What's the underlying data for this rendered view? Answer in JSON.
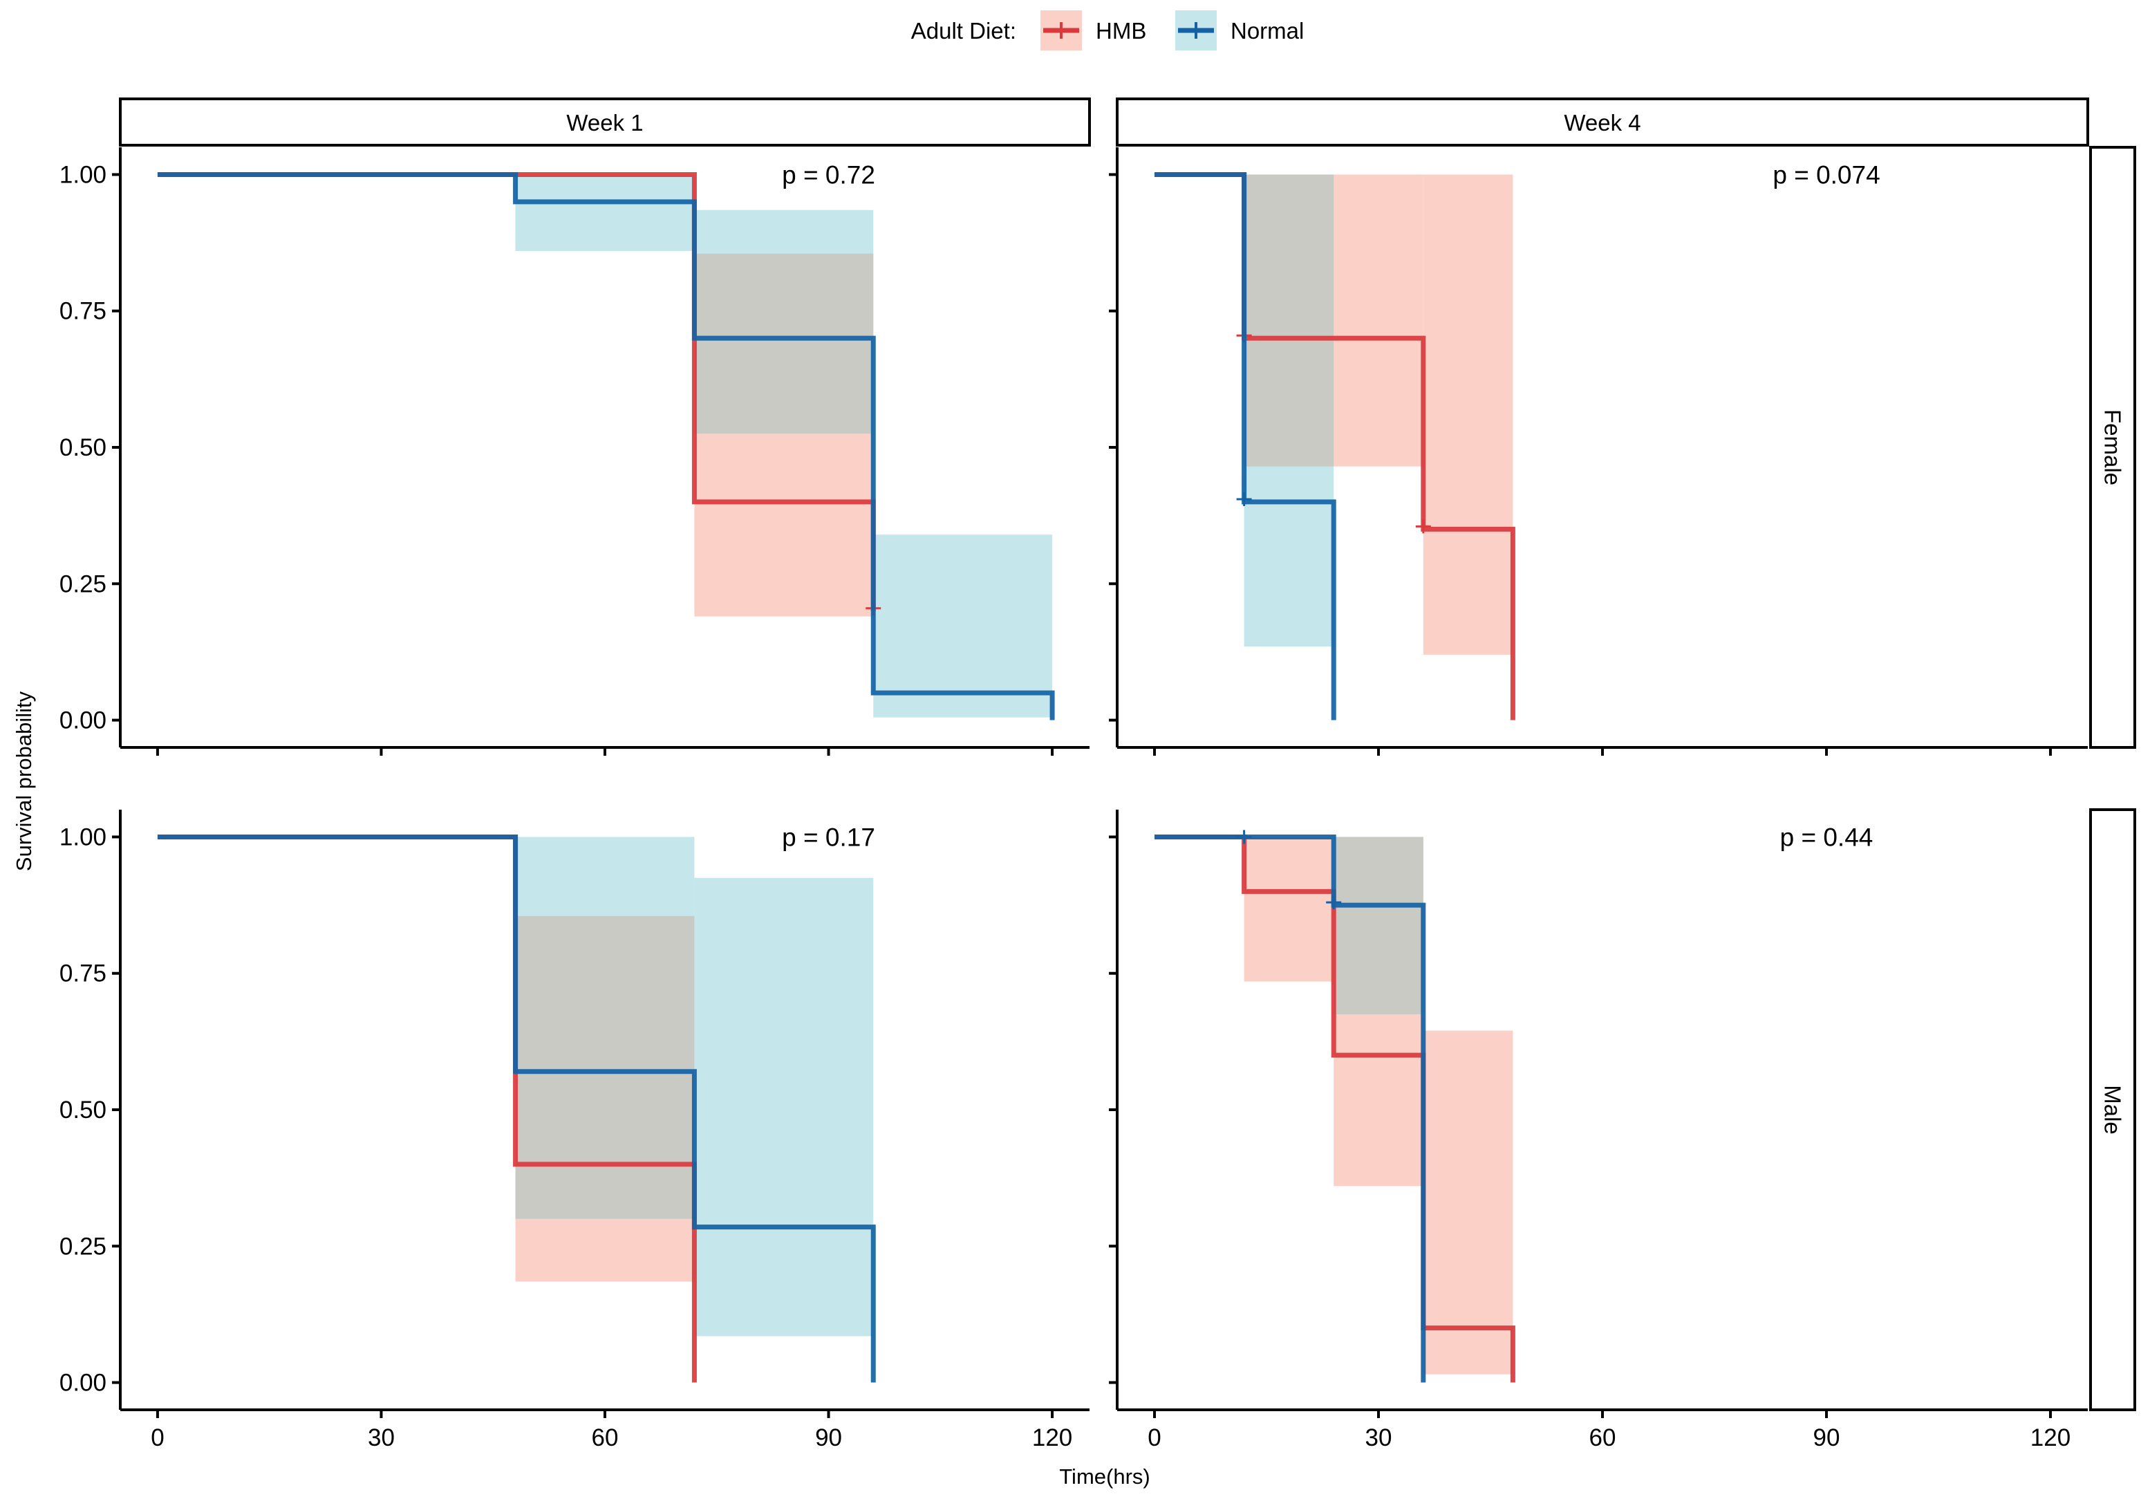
{
  "legend": {
    "title": "Adult Diet:",
    "entries": [
      {
        "name": "HMB",
        "line_color": "#d93a3e",
        "fill_color": "#fbd0c6"
      },
      {
        "name": "Normal",
        "line_color": "#1462a5",
        "fill_color": "#c5e6ea"
      }
    ]
  },
  "overlap_fill_color": "#cacac5",
  "chart_data": {
    "type": "line",
    "subtype": "kaplan-meier survival curves with confidence bands",
    "xlabel": "Time(hrs)",
    "ylabel": "Survival probability",
    "xlim": [
      -5,
      125
    ],
    "ylim": [
      -0.05,
      1.05
    ],
    "x_ticks": [
      0,
      30,
      60,
      90,
      120
    ],
    "y_ticks": [
      0,
      0.25,
      0.5,
      0.75,
      1.0
    ],
    "x_tick_labels": [
      "0",
      "30",
      "60",
      "90",
      "120"
    ],
    "y_tick_labels": [
      "0.00",
      "0.25",
      "0.50",
      "0.75",
      "1.00"
    ],
    "columns": [
      "Week 1",
      "Week 4"
    ],
    "rows": [
      "Female",
      "Male"
    ],
    "panels": [
      {
        "column": "Week 1",
        "row": "Female",
        "pvalue": "p = 0.72",
        "series": [
          {
            "name": "HMB",
            "steps": [
              [
                0,
                1.0
              ],
              [
                72,
                0.4
              ],
              [
                96,
                0.2
              ]
            ],
            "end": 96,
            "ci": [
              [
                72,
                96,
                0.19,
                0.855
              ]
            ],
            "censor": [
              [
                96,
                0.205
              ]
            ]
          },
          {
            "name": "Normal",
            "steps": [
              [
                0,
                1.0
              ],
              [
                48,
                0.95
              ],
              [
                72,
                0.7
              ],
              [
                96,
                0.05
              ],
              [
                120,
                0.0
              ]
            ],
            "end": 120,
            "ci": [
              [
                48,
                72,
                0.86,
                1.0
              ],
              [
                72,
                96,
                0.525,
                0.935
              ],
              [
                96,
                120,
                0.005,
                0.34
              ]
            ],
            "censor": []
          }
        ]
      },
      {
        "column": "Week 4",
        "row": "Female",
        "pvalue": "p = 0.074",
        "series": [
          {
            "name": "HMB",
            "steps": [
              [
                0,
                1.0
              ],
              [
                12,
                0.7
              ],
              [
                36,
                0.35
              ],
              [
                48,
                0.0
              ]
            ],
            "end": 48,
            "ci": [
              [
                12,
                36,
                0.465,
                1.0
              ],
              [
                36,
                48,
                0.12,
                1.0
              ]
            ],
            "censor": [
              [
                12,
                0.705
              ],
              [
                36,
                0.355
              ]
            ]
          },
          {
            "name": "Normal",
            "steps": [
              [
                0,
                1.0
              ],
              [
                12,
                0.4
              ],
              [
                24,
                0.0
              ]
            ],
            "end": 24,
            "ci": [
              [
                12,
                24,
                0.135,
                1.0
              ]
            ],
            "censor": [
              [
                12,
                0.405
              ]
            ]
          }
        ]
      },
      {
        "column": "Week 1",
        "row": "Male",
        "pvalue": "p = 0.17",
        "series": [
          {
            "name": "HMB",
            "steps": [
              [
                0,
                1.0
              ],
              [
                48,
                0.4
              ],
              [
                72,
                0.0
              ]
            ],
            "end": 72,
            "ci": [
              [
                48,
                72,
                0.185,
                0.855
              ]
            ],
            "censor": []
          },
          {
            "name": "Normal",
            "steps": [
              [
                0,
                1.0
              ],
              [
                48,
                0.57
              ],
              [
                72,
                0.285
              ],
              [
                96,
                0.0
              ]
            ],
            "end": 96,
            "ci": [
              [
                48,
                72,
                0.3,
                1.0
              ],
              [
                72,
                96,
                0.085,
                0.925
              ]
            ],
            "censor": []
          }
        ]
      },
      {
        "column": "Week 4",
        "row": "Male",
        "pvalue": "p = 0.44",
        "series": [
          {
            "name": "HMB",
            "steps": [
              [
                0,
                1.0
              ],
              [
                12,
                0.9
              ],
              [
                24,
                0.6
              ],
              [
                36,
                0.1
              ],
              [
                48,
                0.0
              ]
            ],
            "end": 48,
            "ci": [
              [
                12,
                24,
                0.735,
                1.0
              ],
              [
                24,
                36,
                0.36,
                1.0
              ],
              [
                36,
                48,
                0.015,
                0.645
              ]
            ],
            "censor": []
          },
          {
            "name": "Normal",
            "steps": [
              [
                0,
                1.0
              ],
              [
                24,
                0.875
              ],
              [
                36,
                0.0
              ]
            ],
            "end": 36,
            "ci": [
              [
                24,
                36,
                0.675,
                1.0
              ]
            ],
            "censor": [
              [
                12,
                1.0
              ],
              [
                24,
                0.88
              ]
            ]
          }
        ]
      }
    ]
  }
}
